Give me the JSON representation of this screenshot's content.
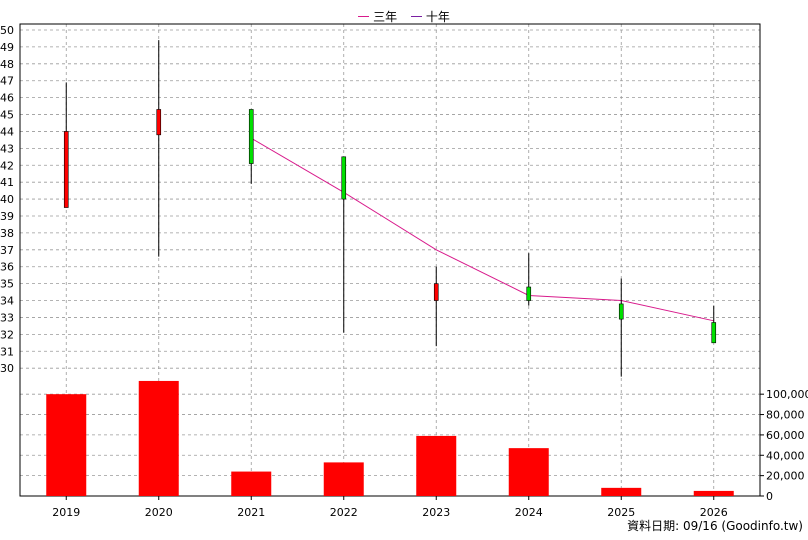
{
  "legend": {
    "series_a": "三年",
    "series_b": "十年"
  },
  "colors": {
    "up": "#00e000",
    "down": "#ff0000",
    "line_a": "#d81b8c",
    "line_b": "#7a1fa2",
    "volume": "#ff0000",
    "grid": "#9a9a9a"
  },
  "credit": "資料日期: 09/16 (Goodinfo.tw)",
  "chart_data": {
    "type": "candlestick+line+bar",
    "categories": [
      "2019",
      "2020",
      "2021",
      "2022",
      "2023",
      "2024",
      "2025",
      "2026"
    ],
    "price_axis": {
      "ylim": [
        29.3,
        50
      ],
      "ticks": [
        30,
        31,
        32,
        33,
        34,
        35,
        36,
        37,
        38,
        39,
        40,
        41,
        42,
        43,
        44,
        45,
        46,
        47,
        48,
        49,
        50
      ],
      "position": "left"
    },
    "volume_axis": {
      "ylim": [
        0,
        110000
      ],
      "ticks": [
        0,
        20000,
        40000,
        60000,
        80000,
        100000
      ],
      "tick_labels": [
        "0",
        "20,000",
        "40,000",
        "60,000",
        "80,000",
        "100,000"
      ],
      "position": "right"
    },
    "candles": [
      {
        "x": "2019",
        "open": 44.0,
        "close": 39.5,
        "high": 46.9,
        "low": 39.5
      },
      {
        "x": "2020",
        "open": 45.3,
        "close": 43.8,
        "high": 49.4,
        "low": 36.6
      },
      {
        "x": "2021",
        "open": 42.1,
        "close": 45.3,
        "high": 45.3,
        "low": 40.9
      },
      {
        "x": "2022",
        "open": 40.0,
        "close": 42.5,
        "high": 42.5,
        "low": 32.1
      },
      {
        "x": "2023",
        "open": 35.0,
        "close": 34.0,
        "high": 36.0,
        "low": 31.3
      },
      {
        "x": "2024",
        "open": 34.0,
        "close": 34.8,
        "high": 36.8,
        "low": 33.7
      },
      {
        "x": "2025",
        "open": 32.9,
        "close": 33.8,
        "high": 35.3,
        "low": 29.5
      },
      {
        "x": "2026",
        "open": 31.5,
        "close": 32.7,
        "high": 33.7,
        "low": 31.5
      }
    ],
    "series": [
      {
        "name": "三年",
        "x": [
          "2021",
          "2022",
          "2023",
          "2024",
          "2025",
          "2026"
        ],
        "values": [
          43.6,
          40.4,
          37.0,
          34.3,
          34.0,
          32.8
        ]
      }
    ],
    "volume": [
      100000,
      113000,
      24000,
      33000,
      59000,
      47000,
      8000,
      5000
    ],
    "grid": true,
    "legend_position": "top-center"
  }
}
